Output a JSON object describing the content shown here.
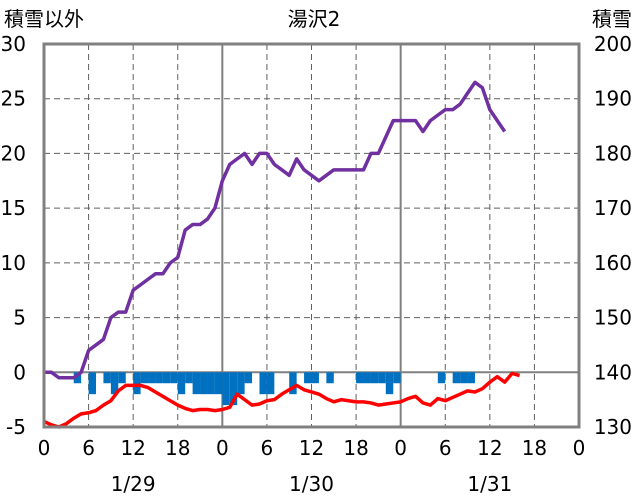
{
  "chart_data": {
    "type": "line",
    "title": "湯沢2",
    "y_left_label": "積雪以外",
    "y_right_label": "積雪",
    "y_left_range": [
      -5,
      30
    ],
    "y_left_ticks": [
      "30",
      "25",
      "20",
      "15",
      "10",
      "5",
      "0",
      "-5"
    ],
    "y_right_range": [
      130,
      200
    ],
    "y_right_ticks": [
      "200",
      "190",
      "180",
      "170",
      "160",
      "150",
      "140",
      "130"
    ],
    "x_hour_ticks": [
      "0",
      "6",
      "12",
      "18",
      "0",
      "6",
      "12",
      "18",
      "0",
      "6",
      "12",
      "18",
      "0"
    ],
    "x_date_labels": [
      "1/29",
      "1/30",
      "1/31"
    ],
    "x_range_hours": [
      0,
      72
    ],
    "grid": true,
    "colors": {
      "snow_depth": "#7030a0",
      "temperature": "#ff0000",
      "precip": "#0070c0",
      "axis": "#808080"
    },
    "series": [
      {
        "key": "snow_depth",
        "axis": "right",
        "x": [
          0,
          1,
          2,
          3,
          4,
          5,
          6,
          7,
          8,
          9,
          10,
          11,
          12,
          13,
          14,
          15,
          16,
          17,
          18,
          19,
          20,
          21,
          22,
          23,
          24,
          25,
          26,
          27,
          28,
          29,
          30,
          31,
          32,
          33,
          34,
          35,
          36,
          37,
          38,
          39,
          40,
          41,
          42,
          43,
          44,
          45,
          46,
          47,
          48,
          49,
          50,
          51,
          52,
          53,
          54,
          55,
          56,
          57,
          58,
          59,
          60,
          61,
          62
        ],
        "values": [
          140,
          140,
          139,
          139,
          139,
          140,
          144,
          145,
          146,
          150,
          151,
          151,
          155,
          156,
          157,
          158,
          158,
          160,
          161,
          166,
          167,
          167,
          168,
          170,
          175,
          178,
          179,
          180,
          178,
          180,
          180,
          178,
          177,
          176,
          179,
          177,
          176,
          175,
          176,
          177,
          177,
          177,
          177,
          177,
          180,
          180,
          183,
          186,
          186,
          186,
          186,
          184,
          186,
          187,
          188,
          188,
          189,
          191,
          193,
          192,
          188,
          186,
          184
        ]
      },
      {
        "key": "temperature",
        "axis": "left",
        "x": [
          0,
          1,
          2,
          3,
          4,
          5,
          6,
          7,
          8,
          9,
          10,
          11,
          12,
          13,
          14,
          15,
          16,
          17,
          18,
          19,
          20,
          21,
          22,
          23,
          24,
          25,
          26,
          27,
          28,
          29,
          30,
          31,
          32,
          33,
          34,
          35,
          36,
          37,
          38,
          39,
          40,
          41,
          42,
          43,
          44,
          45,
          46,
          47,
          48,
          49,
          50,
          51,
          52,
          53,
          54,
          55,
          56,
          57,
          58,
          59,
          60,
          61,
          62,
          63,
          64
        ],
        "values": [
          -4.5,
          -4.8,
          -5.0,
          -4.7,
          -4.2,
          -3.8,
          -3.7,
          -3.5,
          -3.0,
          -2.6,
          -1.7,
          -1.2,
          -1.2,
          -1.2,
          -1.4,
          -1.8,
          -2.2,
          -2.6,
          -3.0,
          -3.3,
          -3.5,
          -3.4,
          -3.4,
          -3.5,
          -3.4,
          -3.2,
          -2.0,
          -2.5,
          -3.0,
          -2.9,
          -2.6,
          -2.5,
          -2.0,
          -1.6,
          -1.2,
          -1.6,
          -1.8,
          -2.0,
          -2.4,
          -2.7,
          -2.5,
          -2.6,
          -2.7,
          -2.7,
          -2.8,
          -3.0,
          -2.9,
          -2.8,
          -2.7,
          -2.4,
          -2.2,
          -2.8,
          -3.0,
          -2.4,
          -2.6,
          -2.3,
          -2.0,
          -1.7,
          -1.8,
          -1.5,
          -0.9,
          -0.4,
          -0.9,
          -0.1,
          -0.3
        ]
      },
      {
        "key": "precip",
        "axis": "left",
        "type": "bar",
        "x": [
          0,
          1,
          2,
          3,
          4,
          5,
          6,
          7,
          8,
          9,
          10,
          11,
          12,
          13,
          14,
          15,
          16,
          17,
          18,
          19,
          20,
          21,
          22,
          23,
          24,
          25,
          26,
          27,
          28,
          29,
          30,
          31,
          32,
          33,
          34,
          35,
          36,
          37,
          38,
          39,
          40,
          41,
          42,
          43,
          44,
          45,
          46,
          47,
          48,
          49,
          50,
          51,
          52,
          53,
          54,
          55,
          56,
          57,
          58,
          59,
          60,
          61,
          62,
          63,
          64,
          65,
          66,
          67,
          68,
          69,
          70,
          71
        ],
        "values": [
          0,
          0,
          0,
          0,
          -1,
          0,
          -2,
          0,
          -1,
          -2,
          -1,
          0,
          -2,
          -1,
          -1,
          -1,
          -1,
          -1,
          -2,
          -1,
          -2,
          -2,
          -2,
          -2,
          -3,
          -3,
          -2,
          -1,
          0,
          -2,
          -2,
          0,
          0,
          -2,
          0,
          -1,
          -1,
          0,
          -1,
          0,
          0,
          0,
          -1,
          -1,
          -1,
          -1,
          -2,
          -1,
          0,
          0,
          0,
          0,
          0,
          -1,
          0,
          -1,
          -1,
          -1,
          0,
          0,
          0,
          0,
          0,
          0,
          0,
          0,
          0,
          0,
          0,
          0,
          0,
          0
        ]
      }
    ]
  }
}
